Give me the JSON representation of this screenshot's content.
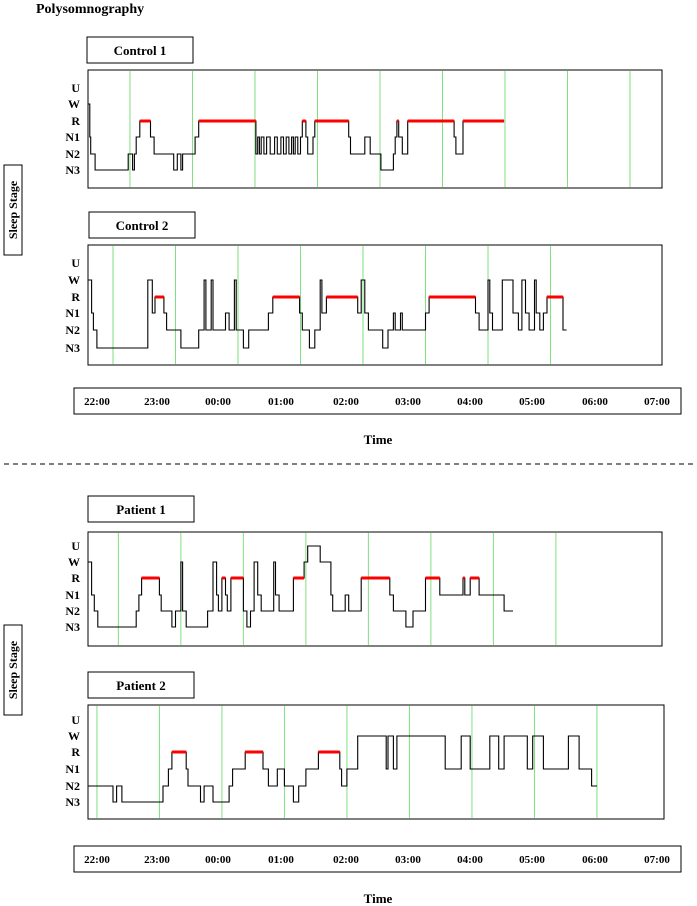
{
  "page_title": "Polysomnography",
  "colors": {
    "rem": "#ff0000",
    "hour_line": "#7ee07e",
    "trace": "#000000",
    "divider": "#333333"
  },
  "chart_data": [
    {
      "type": "hypnogram",
      "title": "Control 1",
      "group": "control",
      "ylabel": "Sleep Stage",
      "xlabel": "Time",
      "y_categories": [
        "U",
        "W",
        "R",
        "N1",
        "N2",
        "N3"
      ],
      "x_ticks": [
        "22:00",
        "23:00",
        "00:00",
        "01:00",
        "02:00",
        "03:00",
        "04:00",
        "05:00",
        "06:00",
        "07:00"
      ],
      "hour_lines_min": [
        -13,
        57,
        127,
        197,
        267,
        337,
        407,
        477,
        547
      ],
      "segments": [
        [
          -60,
          "W"
        ],
        [
          -58,
          "N1"
        ],
        [
          -57,
          "N2"
        ],
        [
          -52,
          "N3"
        ],
        [
          -15,
          "N2"
        ],
        [
          -10,
          "N3"
        ],
        [
          -8,
          "N2"
        ],
        [
          -6,
          "N1"
        ],
        [
          -2,
          "R"
        ],
        [
          10,
          "N1"
        ],
        [
          14,
          "N2"
        ],
        [
          36,
          "N3"
        ],
        [
          40,
          "N2"
        ],
        [
          44,
          "N3"
        ],
        [
          46,
          "N2"
        ],
        [
          60,
          "N1"
        ],
        [
          64,
          "R"
        ],
        [
          128,
          "N2"
        ],
        [
          130,
          "N1"
        ],
        [
          132,
          "N2"
        ],
        [
          134,
          "N1"
        ],
        [
          137,
          "N2"
        ],
        [
          140,
          "N1"
        ],
        [
          144,
          "N2"
        ],
        [
          149,
          "N1"
        ],
        [
          152,
          "N2"
        ],
        [
          156,
          "N1"
        ],
        [
          159,
          "N2"
        ],
        [
          162,
          "N1"
        ],
        [
          165,
          "N2"
        ],
        [
          168,
          "N1"
        ],
        [
          170,
          "N2"
        ],
        [
          172,
          "N1"
        ],
        [
          175,
          "N2"
        ],
        [
          178,
          "N1"
        ],
        [
          180,
          "R"
        ],
        [
          184,
          "N1"
        ],
        [
          186,
          "N2"
        ],
        [
          192,
          "N1"
        ],
        [
          194,
          "R"
        ],
        [
          232,
          "N1"
        ],
        [
          234,
          "N2"
        ],
        [
          250,
          "N1"
        ],
        [
          256,
          "N2"
        ],
        [
          268,
          "N3"
        ],
        [
          282,
          "N2"
        ],
        [
          284,
          "N1"
        ],
        [
          286,
          "R"
        ],
        [
          288,
          "N1"
        ],
        [
          292,
          "N2"
        ],
        [
          298,
          "R"
        ],
        [
          350,
          "N1"
        ],
        [
          352,
          "N2"
        ],
        [
          360,
          "R"
        ]
      ],
      "end_min": 406,
      "x_start_min": -60
    },
    {
      "type": "hypnogram",
      "title": "Control 2",
      "group": "control",
      "ylabel": "Sleep Stage",
      "xlabel": "Time",
      "y_categories": [
        "U",
        "W",
        "R",
        "N1",
        "N2",
        "N3"
      ],
      "x_ticks": [
        "22:00",
        "23:00",
        "00:00",
        "01:00",
        "02:00",
        "03:00",
        "04:00",
        "05:00",
        "06:00",
        "07:00"
      ],
      "hour_lines_min": [
        -32,
        38,
        108,
        178,
        248,
        318,
        388,
        458
      ],
      "segments": [
        [
          -60,
          "W"
        ],
        [
          -56,
          "N1"
        ],
        [
          -54,
          "N2"
        ],
        [
          -50,
          "N3"
        ],
        [
          7,
          "W"
        ],
        [
          12,
          "N1"
        ],
        [
          15,
          "R"
        ],
        [
          25,
          "N1"
        ],
        [
          28,
          "N2"
        ],
        [
          44,
          "N3"
        ],
        [
          64,
          "N2"
        ],
        [
          70,
          "W"
        ],
        [
          72,
          "N2"
        ],
        [
          78,
          "W"
        ],
        [
          80,
          "N2"
        ],
        [
          94,
          "N1"
        ],
        [
          98,
          "N2"
        ],
        [
          104,
          "W"
        ],
        [
          106,
          "N2"
        ],
        [
          114,
          "N3"
        ],
        [
          120,
          "N2"
        ],
        [
          142,
          "N1"
        ],
        [
          147,
          "R"
        ],
        [
          177,
          "N1"
        ],
        [
          180,
          "N2"
        ],
        [
          188,
          "N3"
        ],
        [
          194,
          "N2"
        ],
        [
          200,
          "W"
        ],
        [
          202,
          "N1"
        ],
        [
          207,
          "R"
        ],
        [
          242,
          "N1"
        ],
        [
          246,
          "W"
        ],
        [
          250,
          "N1"
        ],
        [
          254,
          "N2"
        ],
        [
          270,
          "N3"
        ],
        [
          276,
          "N2"
        ],
        [
          282,
          "N1"
        ],
        [
          284,
          "N2"
        ],
        [
          290,
          "N1"
        ],
        [
          292,
          "N2"
        ],
        [
          318,
          "N1"
        ],
        [
          322,
          "R"
        ],
        [
          374,
          "N1"
        ],
        [
          378,
          "N2"
        ],
        [
          388,
          "W"
        ],
        [
          390,
          "N1"
        ],
        [
          393,
          "N2"
        ],
        [
          404,
          "W"
        ],
        [
          416,
          "N1"
        ],
        [
          422,
          "N2"
        ],
        [
          426,
          "W"
        ],
        [
          430,
          "N1"
        ],
        [
          434,
          "N2"
        ],
        [
          440,
          "W"
        ],
        [
          442,
          "N1"
        ],
        [
          446,
          "N2"
        ],
        [
          450,
          "N1"
        ],
        [
          454,
          "R"
        ],
        [
          472,
          "N2"
        ]
      ],
      "end_min": 476,
      "x_start_min": -60
    },
    {
      "type": "hypnogram",
      "title": "Patient 1",
      "group": "patient",
      "ylabel": "Sleep Stage",
      "xlabel": "Time",
      "y_categories": [
        "U",
        "W",
        "R",
        "N1",
        "N2",
        "N3"
      ],
      "x_ticks": [
        "22:00",
        "23:00",
        "00:00",
        "01:00",
        "02:00",
        "03:00",
        "04:00",
        "05:00",
        "06:00",
        "07:00"
      ],
      "hour_lines_min": [
        -26,
        44,
        114,
        184,
        254,
        324,
        394,
        464
      ],
      "segments": [
        [
          -60,
          "W"
        ],
        [
          -56,
          "N1"
        ],
        [
          -53,
          "N2"
        ],
        [
          -49,
          "N3"
        ],
        [
          -6,
          "N2"
        ],
        [
          -3,
          "N1"
        ],
        [
          0,
          "R"
        ],
        [
          20,
          "N1"
        ],
        [
          22,
          "N2"
        ],
        [
          28,
          "N2"
        ],
        [
          34,
          "N3"
        ],
        [
          38,
          "N2"
        ],
        [
          44,
          "W"
        ],
        [
          46,
          "N2"
        ],
        [
          50,
          "N3"
        ],
        [
          74,
          "N2"
        ],
        [
          80,
          "W"
        ],
        [
          84,
          "N1"
        ],
        [
          86,
          "N2"
        ],
        [
          90,
          "R"
        ],
        [
          94,
          "N1"
        ],
        [
          96,
          "N2"
        ],
        [
          100,
          "R"
        ],
        [
          114,
          "N2"
        ],
        [
          118,
          "N3"
        ],
        [
          122,
          "N2"
        ],
        [
          126,
          "W"
        ],
        [
          130,
          "N1"
        ],
        [
          134,
          "N2"
        ],
        [
          148,
          "W"
        ],
        [
          150,
          "N1"
        ],
        [
          154,
          "N2"
        ],
        [
          170,
          "R"
        ],
        [
          182,
          "W"
        ],
        [
          186,
          "U"
        ],
        [
          200,
          "W"
        ],
        [
          212,
          "N1"
        ],
        [
          214,
          "N2"
        ],
        [
          228,
          "N1"
        ],
        [
          232,
          "N2"
        ],
        [
          246,
          "R"
        ],
        [
          278,
          "N1"
        ],
        [
          282,
          "N2"
        ],
        [
          296,
          "N3"
        ],
        [
          304,
          "N2"
        ],
        [
          318,
          "R"
        ],
        [
          334,
          "N1"
        ],
        [
          360,
          "R"
        ],
        [
          362,
          "N1"
        ],
        [
          368,
          "R"
        ],
        [
          378,
          "N1"
        ],
        [
          406,
          "N2"
        ]
      ],
      "end_min": 416,
      "x_start_min": -60
    },
    {
      "type": "hypnogram",
      "title": "Patient 2",
      "group": "patient",
      "ylabel": "Sleep Stage",
      "xlabel": "Time",
      "y_categories": [
        "U",
        "W",
        "R",
        "N1",
        "N2",
        "N3"
      ],
      "x_ticks": [
        "22:00",
        "23:00",
        "00:00",
        "01:00",
        "02:00",
        "03:00",
        "04:00",
        "05:00",
        "06:00",
        "07:00"
      ],
      "hour_lines_min": [
        -50,
        20,
        90,
        160,
        230,
        300,
        370,
        440,
        510
      ],
      "segments": [
        [
          -60,
          "N2"
        ],
        [
          -32,
          "N3"
        ],
        [
          -28,
          "N2"
        ],
        [
          -22,
          "N3"
        ],
        [
          24,
          "N2"
        ],
        [
          30,
          "N1"
        ],
        [
          34,
          "R"
        ],
        [
          50,
          "N1"
        ],
        [
          52,
          "N2"
        ],
        [
          66,
          "N3"
        ],
        [
          70,
          "N2"
        ],
        [
          80,
          "N3"
        ],
        [
          98,
          "N2"
        ],
        [
          102,
          "N1"
        ],
        [
          116,
          "R"
        ],
        [
          136,
          "N1"
        ],
        [
          142,
          "N2"
        ],
        [
          152,
          "N1"
        ],
        [
          160,
          "N2"
        ],
        [
          170,
          "N3"
        ],
        [
          176,
          "N2"
        ],
        [
          184,
          "N1"
        ],
        [
          198,
          "R"
        ],
        [
          222,
          "N1"
        ],
        [
          224,
          "N2"
        ],
        [
          230,
          "N1"
        ],
        [
          242,
          "W"
        ],
        [
          274,
          "N1"
        ],
        [
          276,
          "W"
        ],
        [
          282,
          "N1"
        ],
        [
          286,
          "W"
        ],
        [
          340,
          "N1"
        ],
        [
          358,
          "W"
        ],
        [
          368,
          "N1"
        ],
        [
          390,
          "W"
        ],
        [
          400,
          "N1"
        ],
        [
          406,
          "W"
        ],
        [
          432,
          "N1"
        ],
        [
          438,
          "W"
        ],
        [
          450,
          "N1"
        ],
        [
          478,
          "W"
        ],
        [
          490,
          "N1"
        ],
        [
          504,
          "N2"
        ]
      ],
      "end_min": 510,
      "x_start_min": -60
    }
  ]
}
